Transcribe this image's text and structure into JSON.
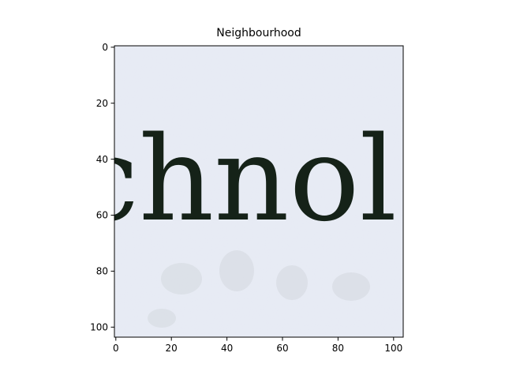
{
  "figure": {
    "title": "Neighbourhood",
    "image_text": "chnol",
    "x_axis": {
      "range": [
        -0.5,
        103.5
      ],
      "ticks": [
        "0",
        "20",
        "40",
        "60",
        "80",
        "100"
      ]
    },
    "y_axis": {
      "range": [
        103.5,
        -0.5
      ],
      "ticks": [
        "0",
        "20",
        "40",
        "60",
        "80",
        "100"
      ]
    },
    "colors": {
      "paper": "#e6eaf4",
      "ink": "#152218",
      "faint_bleed": "#cfd3d6"
    }
  }
}
